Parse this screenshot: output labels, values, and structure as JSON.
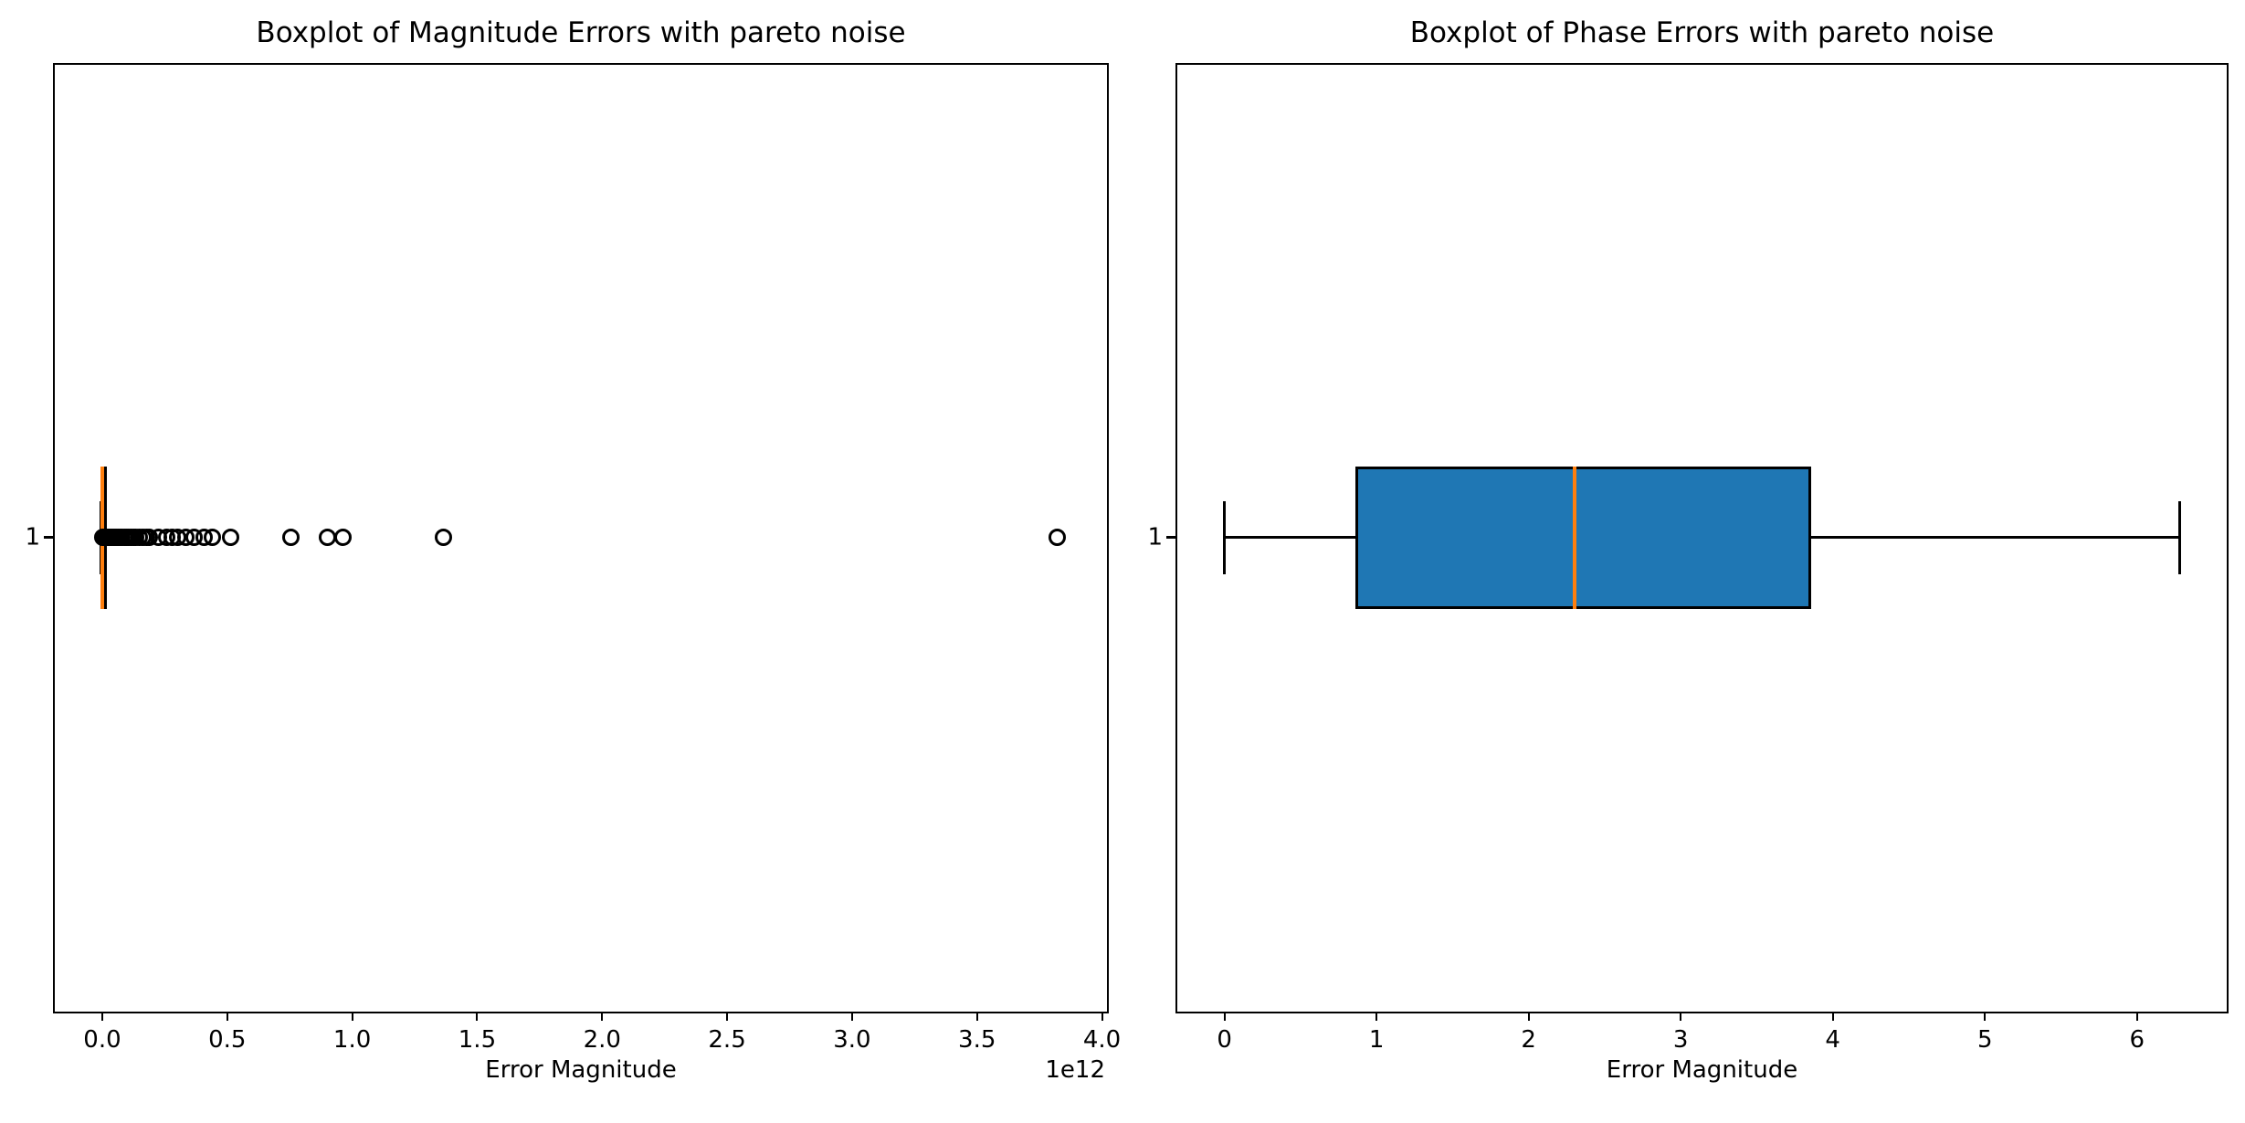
{
  "figure": {
    "background": "#ffffff"
  },
  "chart_data": [
    {
      "type": "boxplot",
      "orientation": "horizontal",
      "title": "Boxplot of Magnitude Errors with pareto noise",
      "xlabel": "Error Magnitude",
      "x_offset_label": "1e12",
      "x_units_note": "x values below are in units of 1e12",
      "xlim": [
        -0.19,
        4.02
      ],
      "x_ticks": [
        0,
        0.5,
        1,
        1.5,
        2,
        2.5,
        3,
        3.5,
        4
      ],
      "x_tick_labels": [
        "0.0",
        "0.5",
        "1.0",
        "1.5",
        "2.0",
        "2.5",
        "3.0",
        "3.5",
        "4.0"
      ],
      "y_tick_labels": [
        "1"
      ],
      "grid": false,
      "legend": null,
      "box": {
        "whisker_low": -0.004,
        "q1": -0.002,
        "median": 0.0,
        "q3": 0.004,
        "whisker_high": 0.009
      },
      "outliers": [
        0.002,
        0.005,
        0.008,
        0.012,
        0.016,
        0.02,
        0.025,
        0.03,
        0.035,
        0.04,
        0.046,
        0.052,
        0.058,
        0.065,
        0.072,
        0.08,
        0.088,
        0.096,
        0.105,
        0.115,
        0.125,
        0.135,
        0.148,
        0.162,
        0.178,
        0.19,
        0.223,
        0.256,
        0.278,
        0.303,
        0.333,
        0.369,
        0.406,
        0.439,
        0.512,
        0.753,
        0.9,
        0.962,
        1.364,
        3.82
      ],
      "colors": {
        "box_fill": "#1f77b4",
        "box_edge": "#000000",
        "median": "#ff7f0e",
        "whisker": "#000000",
        "flier_edge": "#000000"
      }
    },
    {
      "type": "boxplot",
      "orientation": "horizontal",
      "title": "Boxplot of Phase Errors with pareto noise",
      "xlabel": "Error Magnitude",
      "x_offset_label": "",
      "xlim": [
        -0.31,
        6.59
      ],
      "x_ticks": [
        0,
        1,
        2,
        3,
        4,
        5,
        6
      ],
      "x_tick_labels": [
        "0",
        "1",
        "2",
        "3",
        "4",
        "5",
        "6"
      ],
      "y_tick_labels": [
        "1"
      ],
      "grid": false,
      "legend": null,
      "box": {
        "whisker_low": 0.0,
        "q1": 0.86,
        "median": 2.3,
        "q3": 3.86,
        "whisker_high": 6.28
      },
      "outliers": [],
      "colors": {
        "box_fill": "#1f77b4",
        "box_edge": "#000000",
        "median": "#ff7f0e",
        "whisker": "#000000",
        "flier_edge": "#000000"
      }
    }
  ]
}
